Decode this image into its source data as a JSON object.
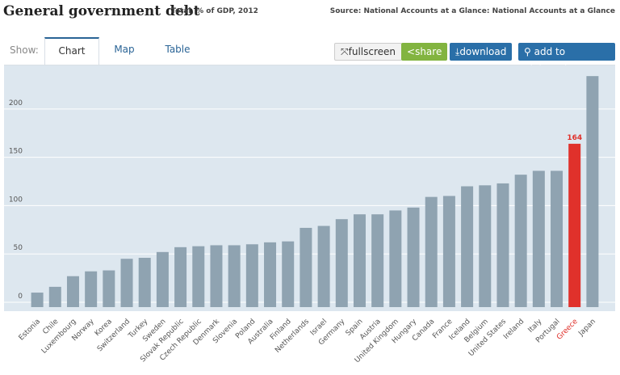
{
  "header": {
    "title": "General government debt",
    "subtitle": "Total, % of GDP, 2012",
    "source": "Source: National Accounts at a Glance: National Accounts at a Glance"
  },
  "toolbar": {
    "show": "Show:",
    "tabs": [
      "Chart",
      "Map",
      "Table"
    ],
    "buttons": [
      "fullscreen",
      "share",
      "download",
      "add to pinboard"
    ]
  },
  "chart_data": {
    "type": "bar",
    "categories": [
      "Estonia",
      "Chile",
      "Luxembourg",
      "Norway",
      "Korea",
      "Switzerland",
      "Turkey",
      "Sweden",
      "Slovak Republic",
      "Czech Republic",
      "Denmark",
      "Slovenia",
      "Poland",
      "Australia",
      "Finland",
      "Netherlands",
      "Israel",
      "Germany",
      "Spain",
      "Austria",
      "United Kingdom",
      "Hungary",
      "Canada",
      "France",
      "Iceland",
      "Belgium",
      "United States",
      "Ireland",
      "Italy",
      "Portugal",
      "Greece",
      "Japan"
    ],
    "values": [
      10,
      16,
      27,
      32,
      33,
      45,
      46,
      52,
      57,
      58,
      59,
      59,
      60,
      62,
      63,
      77,
      79,
      86,
      91,
      91,
      95,
      98,
      109,
      110,
      120,
      121,
      123,
      132,
      136,
      136,
      164,
      234
    ],
    "color": "#8fa3b1",
    "highlight": {
      "index": 30,
      "color": "#e0312b"
    },
    "ylim": [
      -5,
      245
    ],
    "yticks": [
      0,
      50,
      100,
      150,
      200
    ],
    "grid": true
  }
}
